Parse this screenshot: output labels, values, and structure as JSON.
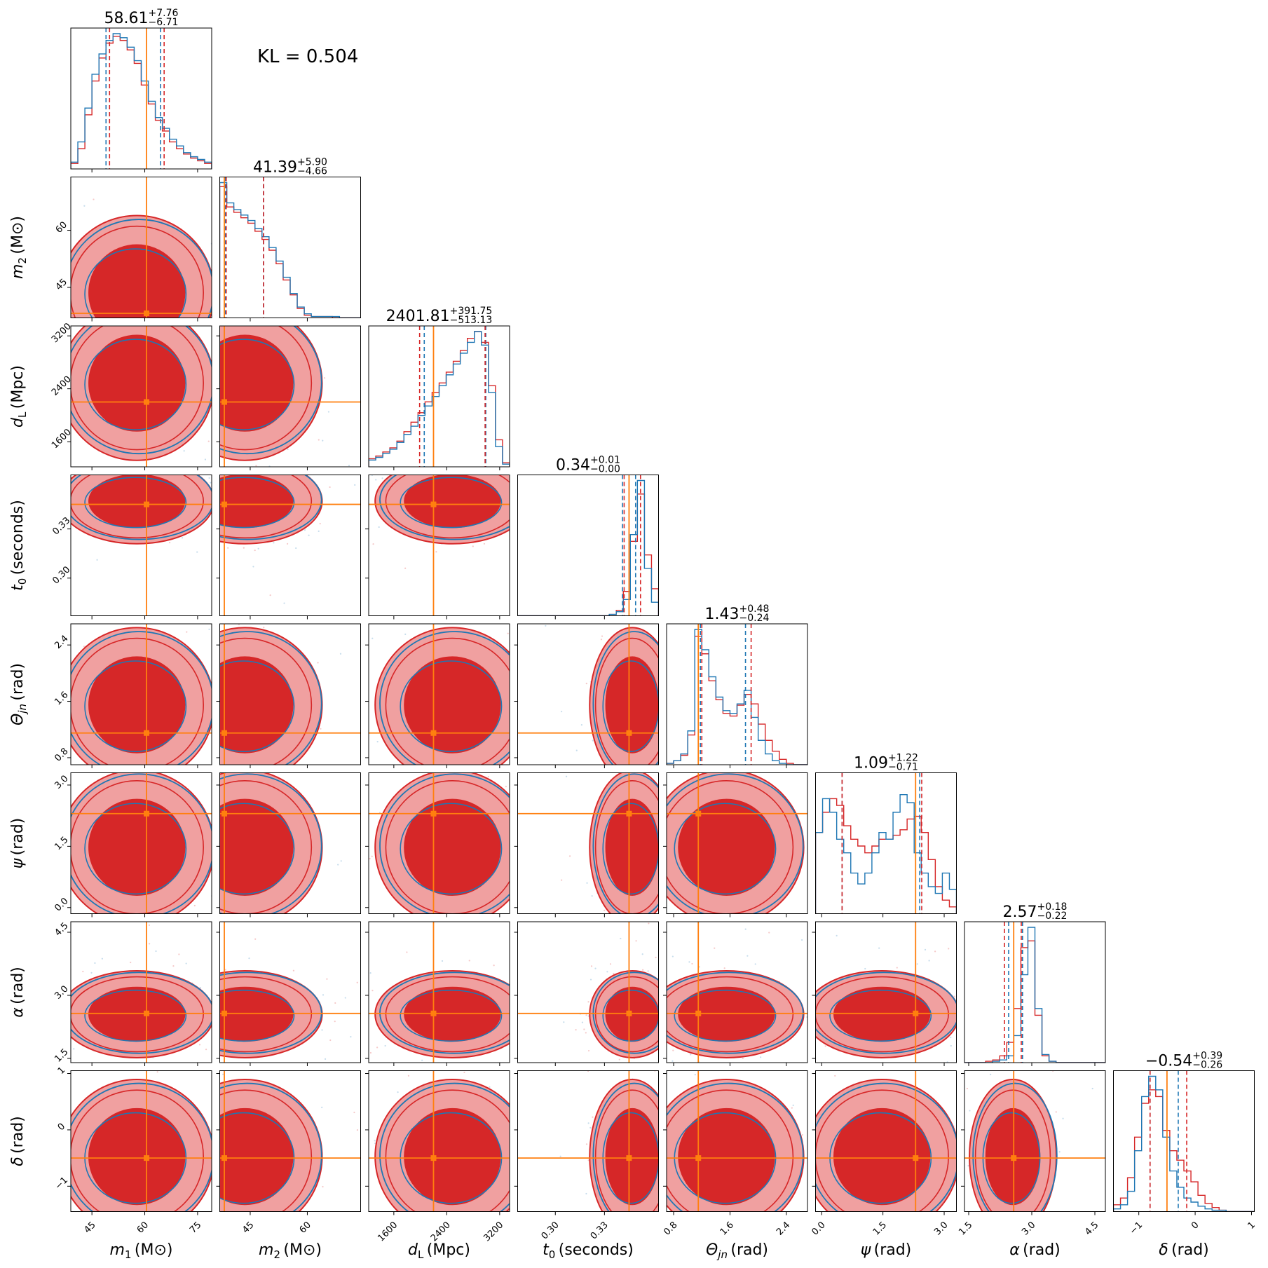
{
  "figure": {
    "kl_text": "KL = 0.504",
    "colors": {
      "reference": "#1f77b4",
      "model": "#d62728",
      "model_fill_inner": "#d62728",
      "model_fill_outer": "#f0a0a0",
      "truth": "#ff7f0e"
    }
  },
  "chart_data": {
    "type": "corner",
    "params": [
      {
        "key": "m1",
        "label": "m",
        "sub": "1",
        "unit": "(M⊙)",
        "range": [
          39,
          79
        ],
        "ticks": [
          45,
          60,
          75
        ],
        "truth": 60.5,
        "title": {
          "val": "58.61",
          "plus": "+7.76",
          "minus": "−6.71"
        },
        "q_blue": [
          49,
          64.5
        ],
        "q_red": [
          50,
          65.5
        ]
      },
      {
        "key": "m2",
        "label": "m",
        "sub": "2",
        "unit": "(M⊙)",
        "range": [
          37,
          74
        ],
        "ticks": [
          45,
          60
        ],
        "truth": 38.2,
        "title": {
          "val": "41.39",
          "plus": "+5.90",
          "minus": "−4.66"
        },
        "q_blue": [
          38.5,
          48.5
        ],
        "q_red": [
          38.7,
          48.5
        ]
      },
      {
        "key": "dL",
        "label": "d",
        "sub": "L",
        "unit": "(Mpc)",
        "range": [
          1220,
          3350
        ],
        "ticks": [
          1600,
          2400,
          3200
        ],
        "truth": 2200,
        "title": {
          "val": "2401.81",
          "plus": "+391.75",
          "minus": "−513.13"
        },
        "q_blue": [
          2060,
          2990
        ],
        "q_red": [
          1990,
          2980
        ]
      },
      {
        "key": "t0",
        "label": "t",
        "sub": "0",
        "unit": "(seconds)",
        "range": [
          0.277,
          0.363
        ],
        "ticks": [
          0.3,
          0.33
        ],
        "tick_labels": [
          "0.30",
          "0.33"
        ],
        "truth": 0.345,
        "title": {
          "val": "0.34",
          "plus": "+0.01",
          "minus": "−0.00"
        },
        "q_blue": [
          0.341,
          0.349
        ],
        "q_red": [
          0.342,
          0.352
        ]
      },
      {
        "key": "theta",
        "label": "Θ",
        "sub": "jn",
        "unit": "(rad)",
        "range": [
          0.7,
          2.7
        ],
        "ticks": [
          0.8,
          1.6,
          2.4
        ],
        "truth": 1.15,
        "title": {
          "val": "1.43",
          "plus": "+0.48",
          "minus": "−0.24"
        },
        "q_blue": [
          1.18,
          1.82
        ],
        "q_red": [
          1.2,
          1.9
        ]
      },
      {
        "key": "psi",
        "label": "ψ",
        "sub": "",
        "unit": "(rad)",
        "range": [
          -0.15,
          3.3
        ],
        "ticks": [
          0.0,
          1.5,
          3.0
        ],
        "tick_labels": [
          "0.0",
          "1.5",
          "3.0"
        ],
        "truth": 2.3,
        "title": {
          "val": "1.09",
          "plus": "+1.22",
          "minus": "−0.71"
        },
        "q_blue": [
          0.5,
          2.4
        ],
        "q_red": [
          0.5,
          2.45
        ]
      },
      {
        "key": "alpha",
        "label": "α",
        "sub": "",
        "unit": "(rad)",
        "range": [
          1.4,
          4.75
        ],
        "ticks": [
          1.5,
          3.0,
          4.5
        ],
        "tick_labels": [
          "1.5",
          "3.0",
          "4.5"
        ],
        "truth": 2.57,
        "title": {
          "val": "2.57",
          "plus": "+0.18",
          "minus": "−0.22"
        },
        "q_blue": [
          2.45,
          2.78
        ],
        "q_red": [
          2.35,
          2.75
        ]
      },
      {
        "key": "delta",
        "label": "δ",
        "sub": "",
        "unit": "(rad)",
        "range": [
          -1.45,
          1.05
        ],
        "ticks": [
          -1,
          0,
          1
        ],
        "tick_labels": [
          "−1",
          "0",
          "1"
        ],
        "truth": -0.5,
        "title": {
          "val": "−0.54",
          "plus": "+0.39",
          "minus": "−0.26"
        },
        "q_blue": [
          -0.8,
          -0.3
        ],
        "q_red": [
          -0.8,
          -0.15
        ]
      }
    ],
    "histograms_1d": [
      {
        "param": "m1",
        "blue": [
          0.05,
          0.2,
          0.45,
          0.7,
          0.85,
          0.95,
          1.0,
          0.97,
          0.9,
          0.8,
          0.65,
          0.5,
          0.38,
          0.3,
          0.22,
          0.17,
          0.12,
          0.09,
          0.07,
          0.05
        ],
        "red": [
          0.04,
          0.15,
          0.4,
          0.65,
          0.82,
          0.93,
          0.98,
          0.95,
          0.88,
          0.78,
          0.62,
          0.48,
          0.36,
          0.28,
          0.2,
          0.15,
          0.11,
          0.08,
          0.06,
          0.04
        ]
      },
      {
        "param": "m2",
        "blue": [
          1.0,
          0.85,
          0.8,
          0.76,
          0.72,
          0.66,
          0.6,
          0.52,
          0.42,
          0.3,
          0.18,
          0.08,
          0.03,
          0.01,
          0.01,
          0.01,
          0.01,
          0.0,
          0.0,
          0.0
        ],
        "red": [
          0.97,
          0.82,
          0.78,
          0.74,
          0.7,
          0.64,
          0.58,
          0.5,
          0.4,
          0.28,
          0.17,
          0.07,
          0.02,
          0.01,
          0.01,
          0.01,
          0.0,
          0.0,
          0.0,
          0.0
        ]
      },
      {
        "param": "dL",
        "blue": [
          0.05,
          0.07,
          0.1,
          0.13,
          0.18,
          0.24,
          0.3,
          0.38,
          0.45,
          0.52,
          0.6,
          0.68,
          0.76,
          0.84,
          0.92,
          1.0,
          0.9,
          0.55,
          0.15,
          0.02
        ],
        "red": [
          0.06,
          0.08,
          0.11,
          0.14,
          0.19,
          0.26,
          0.33,
          0.4,
          0.48,
          0.55,
          0.62,
          0.7,
          0.78,
          0.86,
          0.95,
          1.0,
          0.92,
          0.6,
          0.2,
          0.03
        ]
      },
      {
        "param": "t0",
        "blue": [
          0,
          0,
          0,
          0,
          0,
          0,
          0,
          0,
          0,
          0,
          0,
          0,
          0,
          0.01,
          0.03,
          0.12,
          0.6,
          1.0,
          0.35,
          0.1
        ],
        "red": [
          0,
          0,
          0,
          0,
          0,
          0,
          0,
          0,
          0,
          0,
          0,
          0,
          0,
          0.01,
          0.04,
          0.18,
          0.55,
          0.9,
          0.45,
          0.2
        ]
      },
      {
        "param": "theta",
        "blue": [
          0.01,
          0.03,
          0.08,
          0.25,
          1.0,
          0.85,
          0.65,
          0.5,
          0.4,
          0.38,
          0.45,
          0.55,
          0.35,
          0.18,
          0.08,
          0.03,
          0.01,
          0,
          0,
          0
        ],
        "red": [
          0.01,
          0.03,
          0.07,
          0.22,
          0.95,
          0.82,
          0.62,
          0.48,
          0.38,
          0.36,
          0.44,
          0.52,
          0.45,
          0.3,
          0.18,
          0.1,
          0.04,
          0.01,
          0,
          0
        ]
      },
      {
        "param": "psi",
        "blue": [
          0.6,
          0.85,
          0.75,
          0.55,
          0.45,
          0.3,
          0.22,
          0.3,
          0.45,
          0.6,
          0.55,
          0.75,
          0.88,
          0.82,
          0.45,
          0.3,
          0.2,
          0.15,
          0.3,
          0.18
        ],
        "red": [
          0.6,
          0.75,
          0.85,
          0.8,
          0.65,
          0.55,
          0.5,
          0.45,
          0.5,
          0.55,
          0.55,
          0.58,
          0.62,
          0.7,
          0.72,
          0.6,
          0.4,
          0.2,
          0.1,
          0.05
        ]
      },
      {
        "param": "alpha",
        "blue": [
          0,
          0,
          0,
          0,
          0.01,
          0.02,
          0.05,
          0.2,
          0.65,
          1.0,
          0.4,
          0.06,
          0.01,
          0,
          0,
          0,
          0,
          0,
          0,
          0
        ],
        "red": [
          0,
          0,
          0,
          0.01,
          0.02,
          0.05,
          0.15,
          0.4,
          0.85,
          0.9,
          0.35,
          0.05,
          0.01,
          0,
          0,
          0,
          0,
          0,
          0,
          0
        ]
      },
      {
        "param": "delta",
        "blue": [
          0.02,
          0.05,
          0.15,
          0.45,
          0.85,
          1.0,
          0.9,
          0.55,
          0.3,
          0.18,
          0.1,
          0.07,
          0.04,
          0.02,
          0.01,
          0.01,
          0,
          0,
          0,
          0
        ],
        "red": [
          0.05,
          0.1,
          0.25,
          0.55,
          0.8,
          0.9,
          0.85,
          0.6,
          0.45,
          0.38,
          0.3,
          0.22,
          0.12,
          0.06,
          0.03,
          0.01,
          0,
          0,
          0,
          0
        ]
      }
    ],
    "legend": "none",
    "grid": false
  }
}
